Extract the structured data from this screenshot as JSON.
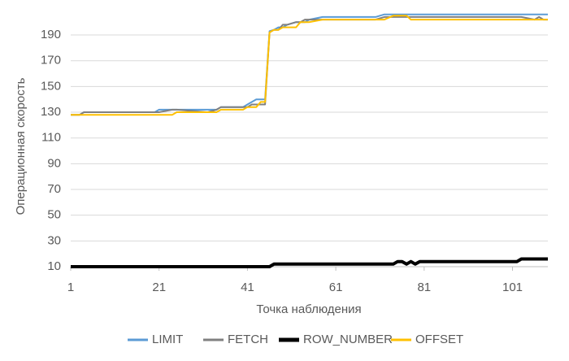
{
  "chart_data": {
    "type": "line",
    "x_label": "Точка наблюдения",
    "y_label": "Операционная скорость",
    "x": [
      1,
      3,
      4,
      20,
      21,
      24,
      25,
      32,
      34,
      35,
      40,
      41,
      42,
      43,
      44,
      45,
      46,
      47,
      48,
      49,
      50,
      52,
      53,
      54,
      55,
      58,
      70,
      72,
      74,
      75,
      76,
      77,
      78,
      79,
      80,
      102,
      103,
      106,
      107,
      108,
      109
    ],
    "series": [
      {
        "name": "LIMIT",
        "color": "#5b9bd5",
        "width": 2,
        "values": [
          128,
          128,
          130,
          130,
          132,
          132,
          132,
          132,
          132,
          134,
          134,
          136,
          138,
          140,
          140,
          140,
          193,
          194,
          196,
          196,
          198,
          200,
          200,
          200,
          202,
          204,
          204,
          206,
          206,
          206,
          206,
          206,
          206,
          206,
          206,
          206,
          206,
          206,
          206,
          206,
          206
        ]
      },
      {
        "name": "FETCH",
        "color": "#808080",
        "width": 2,
        "values": [
          128,
          128,
          130,
          130,
          130,
          132,
          132,
          130,
          132,
          134,
          134,
          134,
          136,
          136,
          136,
          136,
          192,
          194,
          194,
          198,
          198,
          200,
          200,
          202,
          202,
          202,
          202,
          204,
          204,
          204,
          204,
          204,
          204,
          204,
          204,
          204,
          204,
          202,
          204,
          202,
          202
        ]
      },
      {
        "name": "ROW_NUMBER",
        "color": "#000000",
        "width": 4,
        "values": [
          10,
          10,
          10,
          10,
          10,
          10,
          10,
          10,
          10,
          10,
          10,
          10,
          10,
          10,
          10,
          10,
          10,
          12,
          12,
          12,
          12,
          12,
          12,
          12,
          12,
          12,
          12,
          12,
          12,
          14,
          14,
          12,
          14,
          12,
          14,
          14,
          16,
          16,
          16,
          16,
          16
        ]
      },
      {
        "name": "OFFSET",
        "color": "#ffc000",
        "width": 2,
        "values": [
          128,
          128,
          128,
          128,
          128,
          128,
          130,
          130,
          130,
          132,
          132,
          134,
          134,
          134,
          138,
          138,
          192,
          194,
          194,
          196,
          196,
          196,
          200,
          200,
          200,
          202,
          202,
          202,
          205,
          205,
          205,
          205,
          202,
          202,
          202,
          202,
          202,
          202,
          202,
          202,
          202
        ]
      }
    ],
    "xlim": [
      1,
      109
    ],
    "xticks": [
      1,
      21,
      41,
      61,
      81,
      101
    ],
    "ylim": [
      10,
      210
    ],
    "yticks": [
      10,
      30,
      50,
      70,
      90,
      110,
      130,
      150,
      170,
      190
    ],
    "grid": true,
    "legend": "bottom"
  }
}
